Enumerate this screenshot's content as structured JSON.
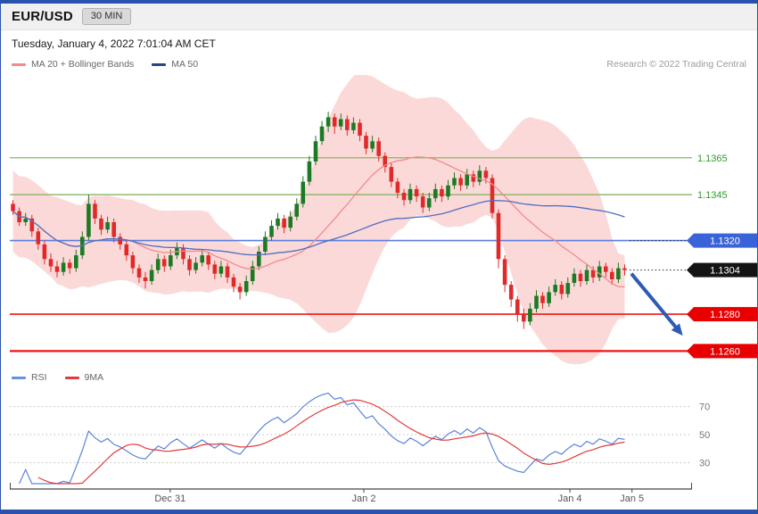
{
  "header": {
    "title": "EUR/USD",
    "interval": "30 MIN",
    "datetime": "Tuesday, January 4, 2022 7:01:04 AM CET"
  },
  "legend": {
    "ma20": "MA 20 + Bollinger Bands",
    "ma50": "MA 50",
    "research": "Research © 2022 Trading Central"
  },
  "rsi_legend": {
    "rsi": "RSI",
    "ma9": "9MA"
  },
  "colors": {
    "accent_bar": "#2a52ad",
    "band_fill": "rgba(247,150,150,0.36)",
    "ma20": "#f08a8a",
    "ma50": "#4e6fbf",
    "ma20_icon": "#f28b8b",
    "ma50_icon": "#27477f",
    "up": "#1d7a24",
    "down": "#e02a2a",
    "rsi": "#5b83d9",
    "rsi_ma": "#e23b3b",
    "rsi_icon": "#6a8fe0",
    "rsi_ma_icon": "#e23b3b",
    "grid": "#bdbdbd",
    "axis": "#444444",
    "tick_text": "#555555"
  },
  "chart_data": {
    "type": "candlestick",
    "title": "EUR/USD 30 MIN",
    "price_panel": {
      "ylim": [
        1.125,
        1.141
      ],
      "candles": [
        [
          1.134,
          1.1342,
          1.1334,
          1.1336
        ],
        [
          1.1336,
          1.1338,
          1.1328,
          1.133
        ],
        [
          1.133,
          1.1335,
          1.1328,
          1.1332
        ],
        [
          1.1332,
          1.1334,
          1.1322,
          1.1325
        ],
        [
          1.1325,
          1.1327,
          1.1315,
          1.1318
        ],
        [
          1.1318,
          1.132,
          1.1307,
          1.131
        ],
        [
          1.131,
          1.1313,
          1.1303,
          1.1306
        ],
        [
          1.1306,
          1.1309,
          1.13,
          1.1303
        ],
        [
          1.1303,
          1.1311,
          1.1301,
          1.1308
        ],
        [
          1.1308,
          1.131,
          1.1302,
          1.1305
        ],
        [
          1.1305,
          1.1315,
          1.1303,
          1.1312
        ],
        [
          1.1312,
          1.1325,
          1.131,
          1.1322
        ],
        [
          1.1322,
          1.1345,
          1.132,
          1.134
        ],
        [
          1.134,
          1.1342,
          1.1329,
          1.1332
        ],
        [
          1.1332,
          1.1334,
          1.1323,
          1.1326
        ],
        [
          1.1326,
          1.1333,
          1.1324,
          1.133
        ],
        [
          1.133,
          1.1332,
          1.1319,
          1.1322
        ],
        [
          1.1322,
          1.1324,
          1.1315,
          1.1318
        ],
        [
          1.1318,
          1.132,
          1.1309,
          1.1312
        ],
        [
          1.1312,
          1.1314,
          1.1302,
          1.1305
        ],
        [
          1.1305,
          1.1307,
          1.1297,
          1.13
        ],
        [
          1.13,
          1.1303,
          1.1294,
          1.1298
        ],
        [
          1.1298,
          1.1307,
          1.1296,
          1.1304
        ],
        [
          1.1304,
          1.1313,
          1.1302,
          1.131
        ],
        [
          1.131,
          1.1312,
          1.1303,
          1.1306
        ],
        [
          1.1306,
          1.1315,
          1.1304,
          1.1312
        ],
        [
          1.1312,
          1.1319,
          1.131,
          1.1316
        ],
        [
          1.1316,
          1.1318,
          1.1307,
          1.131
        ],
        [
          1.131,
          1.1312,
          1.1301,
          1.1304
        ],
        [
          1.1304,
          1.1311,
          1.1302,
          1.1308
        ],
        [
          1.1308,
          1.1315,
          1.1306,
          1.1312
        ],
        [
          1.1312,
          1.1314,
          1.1304,
          1.1307
        ],
        [
          1.1307,
          1.1309,
          1.1299,
          1.1302
        ],
        [
          1.1302,
          1.1309,
          1.13,
          1.1306
        ],
        [
          1.1306,
          1.1308,
          1.1297,
          1.13
        ],
        [
          1.13,
          1.1302,
          1.1292,
          1.1295
        ],
        [
          1.1295,
          1.1297,
          1.1288,
          1.1292
        ],
        [
          1.1292,
          1.1301,
          1.129,
          1.1298
        ],
        [
          1.1298,
          1.1309,
          1.1296,
          1.1306
        ],
        [
          1.1306,
          1.1317,
          1.1304,
          1.1314
        ],
        [
          1.1314,
          1.1325,
          1.1312,
          1.1322
        ],
        [
          1.1322,
          1.1331,
          1.132,
          1.1328
        ],
        [
          1.1328,
          1.1335,
          1.1326,
          1.1332
        ],
        [
          1.1332,
          1.1334,
          1.1324,
          1.1327
        ],
        [
          1.1327,
          1.1336,
          1.1325,
          1.1333
        ],
        [
          1.1333,
          1.1343,
          1.1331,
          1.134
        ],
        [
          1.134,
          1.1355,
          1.1338,
          1.1352
        ],
        [
          1.1352,
          1.1366,
          1.135,
          1.1363
        ],
        [
          1.1363,
          1.1377,
          1.1361,
          1.1374
        ],
        [
          1.1374,
          1.1385,
          1.1372,
          1.1382
        ],
        [
          1.1382,
          1.139,
          1.1379,
          1.1387
        ],
        [
          1.1387,
          1.1389,
          1.1378,
          1.1382
        ],
        [
          1.1382,
          1.1389,
          1.138,
          1.1386
        ],
        [
          1.1386,
          1.1388,
          1.1377,
          1.138
        ],
        [
          1.138,
          1.1387,
          1.1378,
          1.1384
        ],
        [
          1.1384,
          1.1386,
          1.1374,
          1.1377
        ],
        [
          1.1377,
          1.1379,
          1.1367,
          1.137
        ],
        [
          1.137,
          1.1377,
          1.1368,
          1.1374
        ],
        [
          1.1374,
          1.1376,
          1.1363,
          1.1366
        ],
        [
          1.1366,
          1.1368,
          1.1357,
          1.136
        ],
        [
          1.136,
          1.1362,
          1.1349,
          1.1352
        ],
        [
          1.1352,
          1.1354,
          1.1343,
          1.1346
        ],
        [
          1.1346,
          1.1348,
          1.1339,
          1.1342
        ],
        [
          1.1342,
          1.1351,
          1.134,
          1.1348
        ],
        [
          1.1348,
          1.135,
          1.1341,
          1.1344
        ],
        [
          1.1344,
          1.1346,
          1.1335,
          1.1338
        ],
        [
          1.1338,
          1.1346,
          1.1336,
          1.1343
        ],
        [
          1.1343,
          1.1351,
          1.1341,
          1.1348
        ],
        [
          1.1348,
          1.135,
          1.1341,
          1.1344
        ],
        [
          1.1344,
          1.1353,
          1.1342,
          1.135
        ],
        [
          1.135,
          1.1357,
          1.1348,
          1.1354
        ],
        [
          1.1354,
          1.1356,
          1.1347,
          1.135
        ],
        [
          1.135,
          1.1359,
          1.1348,
          1.1356
        ],
        [
          1.1356,
          1.1358,
          1.1349,
          1.1352
        ],
        [
          1.1352,
          1.1361,
          1.135,
          1.1358
        ],
        [
          1.1358,
          1.136,
          1.1351,
          1.1354
        ],
        [
          1.1354,
          1.1356,
          1.1332,
          1.1335
        ],
        [
          1.1335,
          1.1337,
          1.1305,
          1.131
        ],
        [
          1.131,
          1.1312,
          1.1292,
          1.1296
        ],
        [
          1.1296,
          1.1298,
          1.1284,
          1.1288
        ],
        [
          1.1288,
          1.129,
          1.1276,
          1.128
        ],
        [
          1.128,
          1.1283,
          1.1272,
          1.1276
        ],
        [
          1.1276,
          1.1286,
          1.1274,
          1.1283
        ],
        [
          1.1283,
          1.1293,
          1.1281,
          1.129
        ],
        [
          1.129,
          1.1292,
          1.1283,
          1.1286
        ],
        [
          1.1286,
          1.1295,
          1.1284,
          1.1292
        ],
        [
          1.1292,
          1.1299,
          1.129,
          1.1296
        ],
        [
          1.1296,
          1.1298,
          1.1288,
          1.1291
        ],
        [
          1.1291,
          1.13,
          1.1289,
          1.1297
        ],
        [
          1.1297,
          1.1305,
          1.1295,
          1.1302
        ],
        [
          1.1302,
          1.1304,
          1.1295,
          1.1298
        ],
        [
          1.1298,
          1.1307,
          1.1296,
          1.1304
        ],
        [
          1.1304,
          1.1306,
          1.1297,
          1.13
        ],
        [
          1.13,
          1.1309,
          1.1298,
          1.1306
        ],
        [
          1.1306,
          1.1308,
          1.13,
          1.1303
        ],
        [
          1.1303,
          1.1305,
          1.1296,
          1.1299
        ],
        [
          1.1299,
          1.1308,
          1.1297,
          1.1305
        ],
        [
          1.1305,
          1.1307,
          1.1301,
          1.1304
        ]
      ],
      "levels": [
        {
          "value": 1.1365,
          "label": "1.1365",
          "style": "text",
          "line_color": "#7cae52",
          "label_color": "#2f9b2f"
        },
        {
          "value": 1.1345,
          "label": "1.1345",
          "style": "text",
          "line_color": "#7cae52",
          "label_color": "#2f9b2f"
        },
        {
          "value": 1.132,
          "label": "1.1320",
          "style": "badge",
          "line_color": "#5b7edf",
          "line_width": 1.6,
          "badge_color": "#3a63d9",
          "leader": true
        },
        {
          "value": 1.1304,
          "label": "1.1304",
          "style": "badge",
          "badge_color": "#141414",
          "leader": true
        },
        {
          "value": 1.128,
          "label": "1.1280",
          "style": "badge",
          "line_color": "#f01414",
          "line_width": 1.6,
          "badge_color": "#e80000"
        },
        {
          "value": 1.126,
          "label": "1.1260",
          "style": "badge",
          "line_color": "#f01414",
          "line_width": 2.2,
          "badge_color": "#e80000"
        }
      ],
      "arrow": {
        "from_price": 1.1302,
        "to_price": 1.1268,
        "color": "#2e5bb7"
      }
    },
    "rsi_panel": {
      "gridlines": [
        {
          "value": 70,
          "label": "70"
        },
        {
          "value": 50,
          "label": "50"
        },
        {
          "value": 30,
          "label": "30"
        }
      ]
    },
    "x_ticks": [
      {
        "label": "Dec 31",
        "pos": 0.235
      },
      {
        "label": "Jan 2",
        "pos": 0.519
      },
      {
        "label": "Jan 4",
        "pos": 0.821
      },
      {
        "label": "Jan 5",
        "pos": 0.912
      }
    ]
  }
}
